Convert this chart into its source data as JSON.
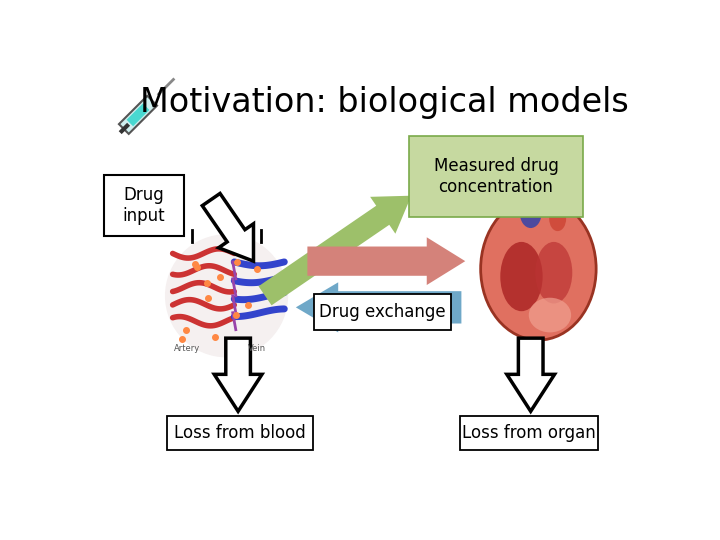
{
  "title": "Motivation: biological models",
  "title_fontsize": 24,
  "bg_color": "#ffffff",
  "labels": {
    "drug_input": "Drug\ninput",
    "measured": "Measured drug\nconcentration",
    "drug_exchange": "Drug exchange",
    "loss_blood": "Loss from blood",
    "loss_organ": "Loss from organ"
  },
  "box_colors": {
    "drug_input": "#ffffff",
    "measured": "#c6d9a0",
    "drug_exchange": "#ffffff",
    "loss_blood": "#ffffff",
    "loss_organ": "#ffffff"
  },
  "arrow_colors": {
    "green": "#9dc06a",
    "red": "#d4827a",
    "blue": "#6fa8c8",
    "black": "#000000"
  }
}
